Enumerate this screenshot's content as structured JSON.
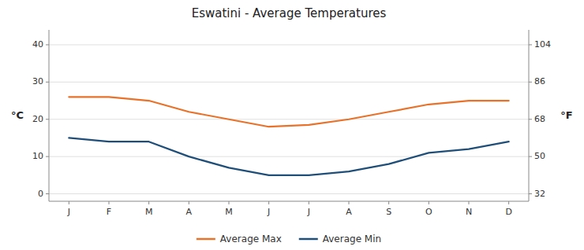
{
  "chart_data": {
    "type": "line",
    "title": "Eswatini - Average Temperatures",
    "categories": [
      "J",
      "F",
      "M",
      "A",
      "M",
      "J",
      "J",
      "A",
      "S",
      "O",
      "N",
      "D"
    ],
    "series": [
      {
        "name": "Average Max",
        "color": "#E8722A",
        "values": [
          26,
          26,
          25,
          22,
          20,
          18,
          18.5,
          20,
          22,
          24,
          25,
          25
        ]
      },
      {
        "name": "Average Min",
        "color": "#1F4E79",
        "values": [
          15,
          14,
          14,
          10,
          7,
          5,
          5,
          6,
          8,
          11,
          12,
          14
        ]
      }
    ],
    "ylim": [
      -2,
      44
    ],
    "yticks": [
      0,
      10,
      20,
      30,
      40
    ],
    "y2lim": [
      28.4,
      111.2
    ],
    "y2ticks": [
      32,
      50,
      68,
      86,
      104
    ],
    "y_label": "°C",
    "y2_label": "°F",
    "grid": true,
    "legend": "bottom"
  }
}
